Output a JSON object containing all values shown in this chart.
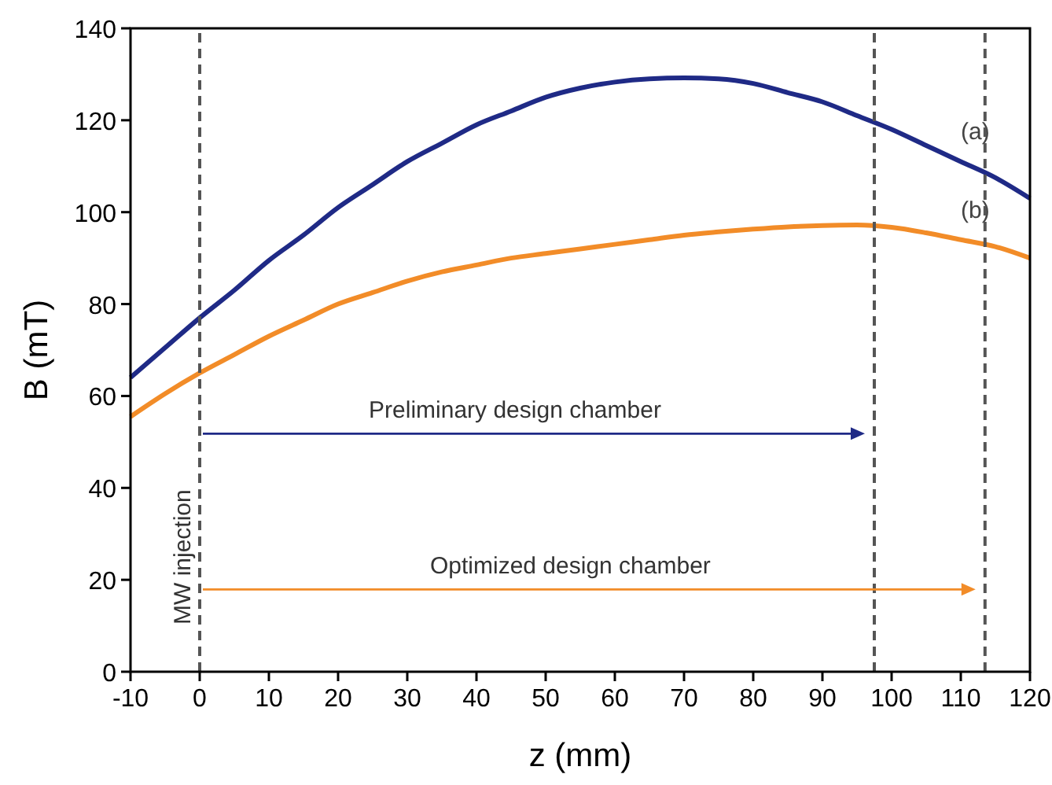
{
  "chart_data": {
    "type": "line",
    "xlabel": "z (mm)",
    "ylabel": "B (mT)",
    "x": [
      -10,
      -5,
      0,
      5,
      10,
      15,
      20,
      25,
      30,
      35,
      40,
      45,
      50,
      55,
      60,
      65,
      70,
      75,
      80,
      85,
      90,
      95,
      100,
      105,
      110,
      115,
      120
    ],
    "series": [
      {
        "name": "(a)",
        "color": "#1f2a86",
        "values": [
          64,
          70.5,
          77,
          83,
          89.5,
          95,
          101,
          106,
          111,
          115,
          119,
          122,
          125,
          127,
          128.3,
          129,
          129.2,
          129,
          128,
          126,
          124,
          121,
          118,
          114.5,
          111,
          107.5,
          103
        ]
      },
      {
        "name": "(b)",
        "color": "#f28c28",
        "values": [
          55.5,
          60.5,
          65,
          69,
          73,
          76.5,
          80,
          82.5,
          85,
          87,
          88.5,
          90,
          91,
          92,
          93,
          94,
          95,
          95.7,
          96.3,
          96.8,
          97.1,
          97.2,
          96.7,
          95.5,
          94,
          92.5,
          90
        ]
      }
    ],
    "xlim": [
      -10,
      120
    ],
    "xticks": [
      -10,
      0,
      10,
      20,
      30,
      40,
      50,
      60,
      70,
      80,
      90,
      100,
      110,
      120
    ],
    "ylim": [
      0,
      140
    ],
    "yticks": [
      0,
      20,
      40,
      60,
      80,
      100,
      120,
      140
    ],
    "grid": false,
    "marker": "none",
    "line_style": "solid",
    "ref_lines": [
      {
        "axis": "x",
        "value": 0,
        "color": "#555555",
        "line_style": "dashed"
      },
      {
        "axis": "x",
        "value": 97.5,
        "color": "#555555",
        "line_style": "dashed"
      },
      {
        "axis": "x",
        "value": 113.5,
        "color": "#555555",
        "line_style": "dashed"
      }
    ],
    "annotations": [
      "Preliminary design chamber",
      "Optimized design chamber",
      "MW injection"
    ]
  }
}
